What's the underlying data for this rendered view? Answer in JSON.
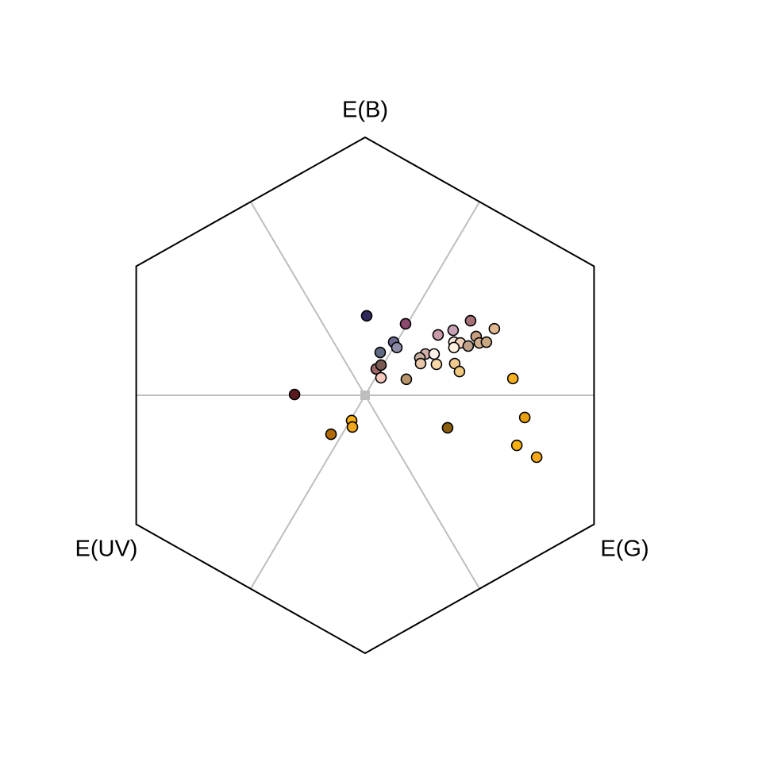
{
  "chart_data": {
    "type": "scatter",
    "axis_labels": [
      "E(B)",
      "E(G)",
      "E(UV)"
    ],
    "xlim": [
      -1,
      1
    ],
    "ylim": [
      -1,
      1
    ],
    "x": [
      0.006,
      0.153,
      0.108,
      0.12,
      0.057,
      0.042,
      0.06,
      0.06,
      0.156,
      0.276,
      0.333,
      0.399,
      0.489,
      0.42,
      0.336,
      0.36,
      0.39,
      0.432,
      0.459,
      0.336,
      0.228,
      0.261,
      0.207,
      0.21,
      0.27,
      0.339,
      0.357,
      0.559,
      -0.267,
      -0.051,
      -0.048,
      -0.129,
      0.312,
      0.604,
      0.574,
      0.649
    ],
    "values": [
      0.308,
      0.277,
      0.206,
      0.185,
      0.166,
      0.102,
      0.117,
      0.068,
      0.062,
      0.234,
      0.252,
      0.289,
      0.258,
      0.228,
      0.206,
      0.203,
      0.191,
      0.203,
      0.206,
      0.185,
      0.16,
      0.16,
      0.145,
      0.123,
      0.12,
      0.123,
      0.092,
      0.065,
      0.003,
      -0.098,
      -0.123,
      -0.151,
      -0.126,
      -0.086,
      -0.194,
      -0.24
    ],
    "colors": [
      "#2f2a5a",
      "#8b4a6e",
      "#6c6a92",
      "#8e8ca8",
      "#5f6b80",
      "#9a6666",
      "#7a5a55",
      "#f5c8c0",
      "#b8956a",
      "#c89aaa",
      "#c8a0b4",
      "#a87078",
      "#e0b890",
      "#c8a080",
      "#f8e8d8",
      "#f0d0b8",
      "#c0a088",
      "#d0b090",
      "#c8a880",
      "#fff0e0",
      "#d0b0a8",
      "#fff0e8",
      "#c8b0a0",
      "#e8c8a8",
      "#f8d8a8",
      "#f0c890",
      "#f0c880",
      "#f8b020",
      "#5a1a20",
      "#f8b010",
      "#f0a818",
      "#b06a00",
      "#8a6010",
      "#e8a010",
      "#f8b010",
      "#f8a818"
    ]
  }
}
